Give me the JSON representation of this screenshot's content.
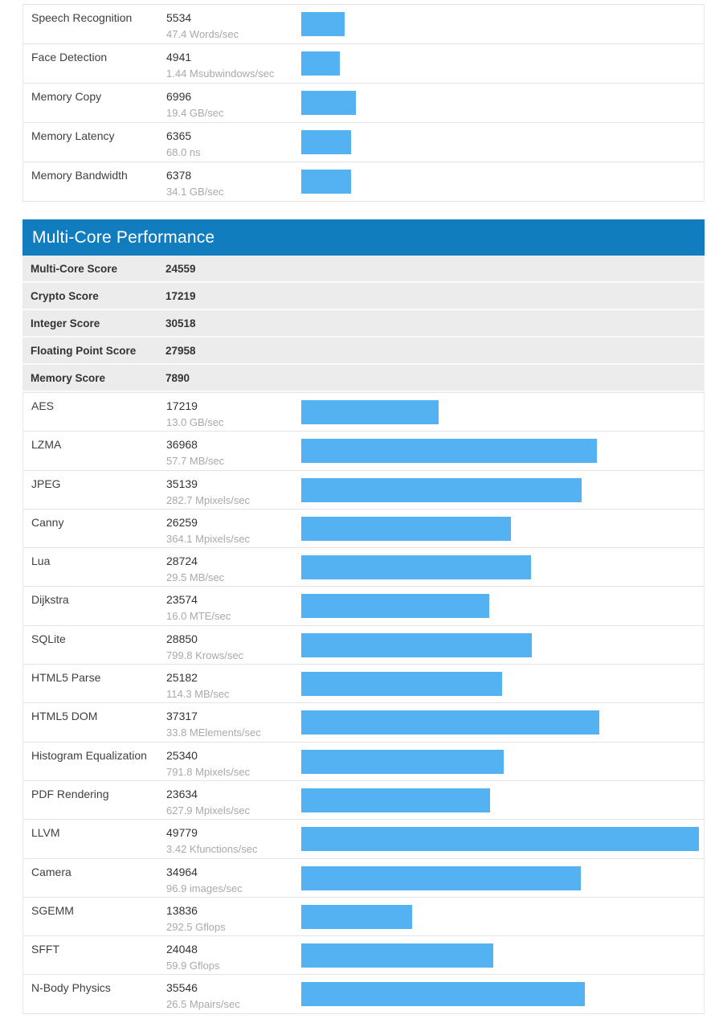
{
  "colors": {
    "bar": "#54b1f2",
    "header_bg": "#117dbe",
    "header_text": "#ffffff",
    "summary_row_bg": "#ececec",
    "row_border": "#e4e4e4",
    "name_text": "#3f3f3f",
    "score_text": "#333333",
    "rate_text": "#a9a9a9"
  },
  "chart_data": [
    {
      "type": "bar",
      "section": "single-core-workloads-partial",
      "title": "",
      "orientation": "horizontal",
      "bar_color": "#54b1f2",
      "legend": "none",
      "grid": "off",
      "xlim": [
        0,
        51000
      ],
      "rows": [
        {
          "category": "Speech Recognition",
          "score": 5534,
          "rate": "47.4 Words/sec"
        },
        {
          "category": "Face Detection",
          "score": 4941,
          "rate": "1.44 Msubwindows/sec"
        },
        {
          "category": "Memory Copy",
          "score": 6996,
          "rate": "19.4 GB/sec"
        },
        {
          "category": "Memory Latency",
          "score": 6365,
          "rate": "68.0 ns"
        },
        {
          "category": "Memory Bandwidth",
          "score": 6378,
          "rate": "34.1 GB/sec"
        }
      ]
    },
    {
      "type": "bar",
      "section": "multi-core-performance",
      "title": "Multi-Core Performance",
      "orientation": "horizontal",
      "bar_color": "#54b1f2",
      "legend": "none",
      "grid": "off",
      "xlim": [
        0,
        49779
      ],
      "summary": [
        {
          "label": "Multi-Core Score",
          "value": 24559
        },
        {
          "label": "Crypto Score",
          "value": 17219
        },
        {
          "label": "Integer Score",
          "value": 30518
        },
        {
          "label": "Floating Point Score",
          "value": 27958
        },
        {
          "label": "Memory Score",
          "value": 7890
        }
      ],
      "rows": [
        {
          "category": "AES",
          "score": 17219,
          "rate": "13.0 GB/sec"
        },
        {
          "category": "LZMA",
          "score": 36968,
          "rate": "57.7 MB/sec"
        },
        {
          "category": "JPEG",
          "score": 35139,
          "rate": "282.7 Mpixels/sec"
        },
        {
          "category": "Canny",
          "score": 26259,
          "rate": "364.1 Mpixels/sec"
        },
        {
          "category": "Lua",
          "score": 28724,
          "rate": "29.5 MB/sec"
        },
        {
          "category": "Dijkstra",
          "score": 23574,
          "rate": "16.0 MTE/sec"
        },
        {
          "category": "SQLite",
          "score": 28850,
          "rate": "799.8 Krows/sec"
        },
        {
          "category": "HTML5 Parse",
          "score": 25182,
          "rate": "114.3 MB/sec"
        },
        {
          "category": "HTML5 DOM",
          "score": 37317,
          "rate": "33.8 MElements/sec"
        },
        {
          "category": "Histogram Equalization",
          "score": 25340,
          "rate": "791.8 Mpixels/sec"
        },
        {
          "category": "PDF Rendering",
          "score": 23634,
          "rate": "627.9 Mpixels/sec"
        },
        {
          "category": "LLVM",
          "score": 49779,
          "rate": "3.42 Kfunctions/sec"
        },
        {
          "category": "Camera",
          "score": 34964,
          "rate": "96.9 images/sec"
        },
        {
          "category": "SGEMM",
          "score": 13836,
          "rate": "292.5 Gflops"
        },
        {
          "category": "SFFT",
          "score": 24048,
          "rate": "59.9 Gflops"
        },
        {
          "category": "N-Body Physics",
          "score": 35546,
          "rate": "26.5 Mpairs/sec"
        }
      ]
    }
  ]
}
